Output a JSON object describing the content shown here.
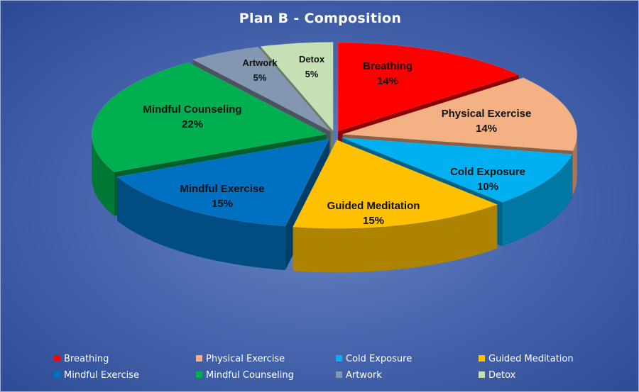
{
  "chart_data": {
    "type": "pie",
    "title": "Plan B - Composition",
    "categories": [
      "Breathing",
      "Physical Exercise",
      "Cold Exposure",
      "Guided Meditation",
      "Mindful Exercise",
      "Mindful Counseling",
      "Artwork",
      "Detox"
    ],
    "values": [
      14,
      14,
      10,
      15,
      15,
      22,
      5,
      5
    ],
    "labels": [
      "14%",
      "14%",
      "10%",
      "15%",
      "15%",
      "22%",
      "5%",
      "5%"
    ],
    "colors": [
      "#ff0000",
      "#f4b183",
      "#00b0f0",
      "#ffc000",
      "#0070c0",
      "#00b050",
      "#8497b0",
      "#c5e0b4"
    ],
    "style": "3d-exploded",
    "legend_position": "bottom"
  }
}
